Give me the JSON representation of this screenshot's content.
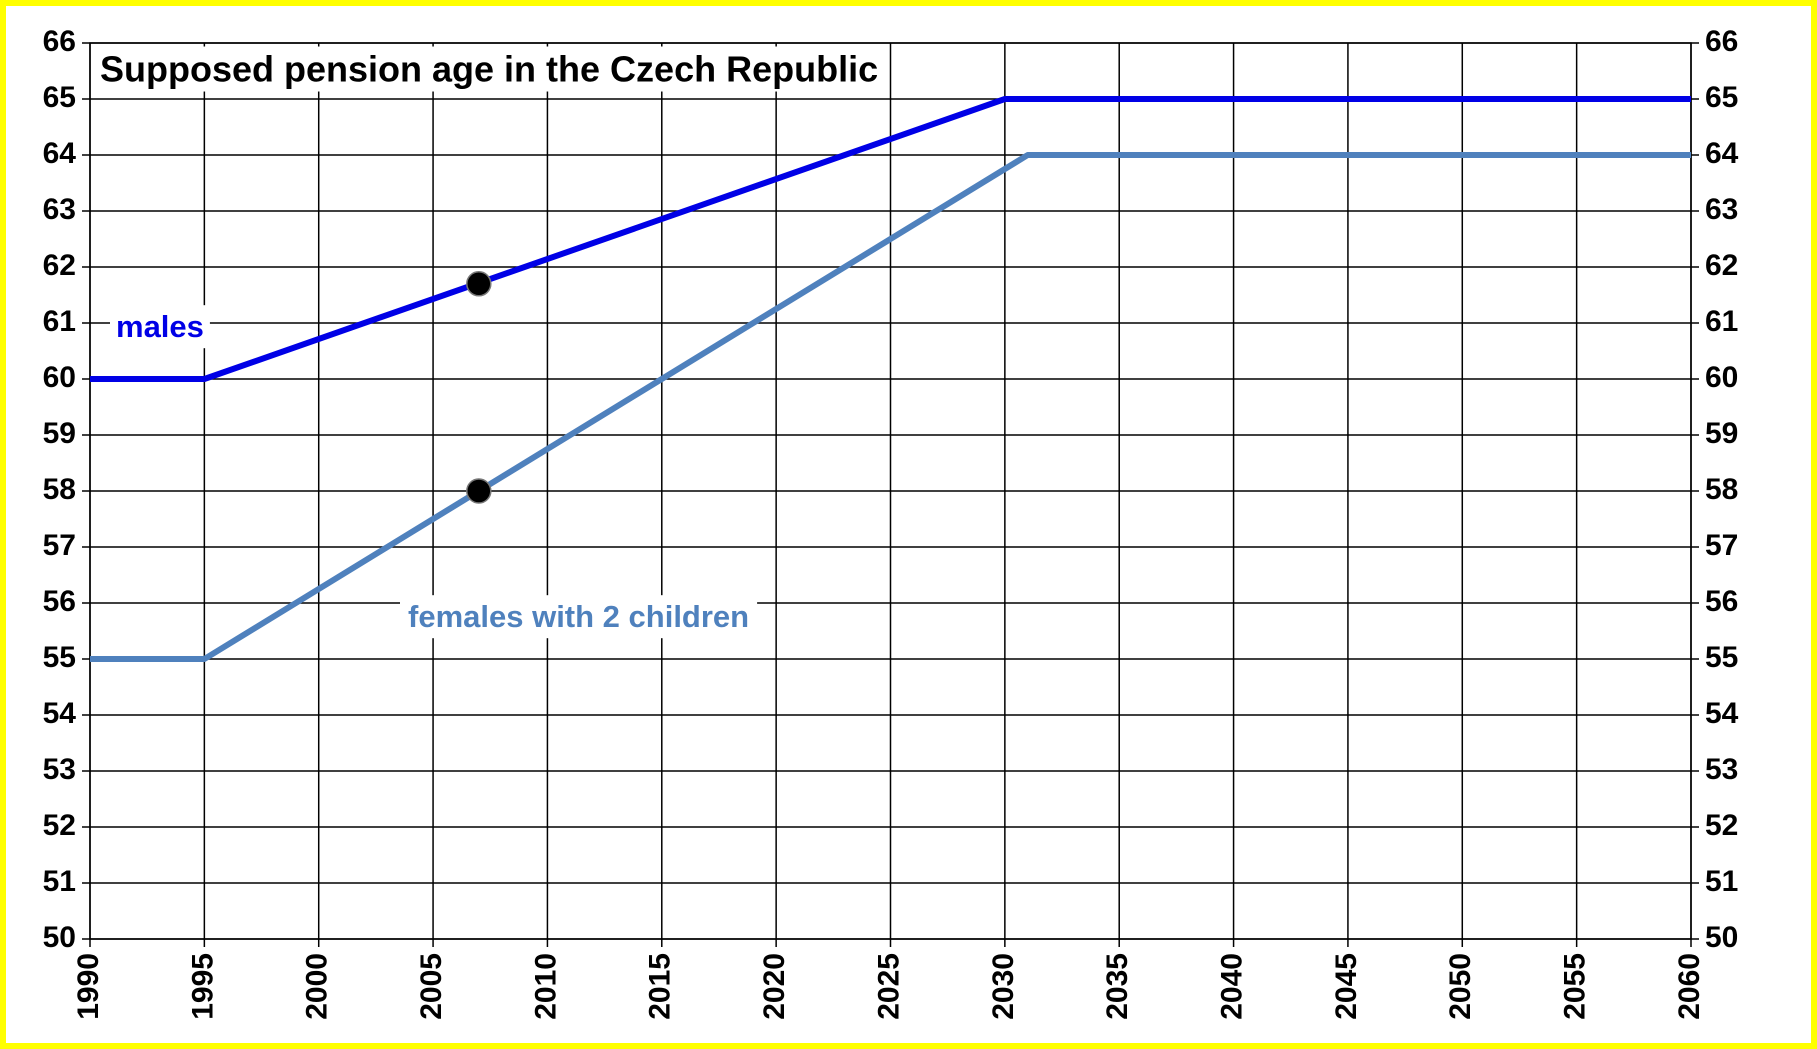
{
  "chart_data": {
    "type": "line",
    "title": "Supposed pension age in the Czech Republic",
    "series": [
      {
        "name": "males",
        "color": "#0000e6",
        "x": [
          1990,
          1995,
          2030,
          2060
        ],
        "values": [
          60,
          60,
          65,
          65
        ]
      },
      {
        "name": "females with 2 children",
        "color": "#4f81bd",
        "x": [
          1990,
          1995,
          2031,
          2060
        ],
        "values": [
          55,
          55,
          64,
          64
        ]
      }
    ],
    "highlights": [
      {
        "x": 2007,
        "y": 61.7
      },
      {
        "x": 2007,
        "y": 58
      }
    ],
    "xlim": [
      1990,
      2060
    ],
    "xticks": [
      1990,
      1995,
      2000,
      2005,
      2010,
      2015,
      2020,
      2025,
      2030,
      2035,
      2040,
      2045,
      2050,
      2055,
      2060
    ],
    "ylim": [
      50,
      66
    ],
    "yticks": [
      50,
      51,
      52,
      53,
      54,
      55,
      56,
      57,
      58,
      59,
      60,
      61,
      62,
      63,
      64,
      65,
      66
    ],
    "grid": true
  }
}
